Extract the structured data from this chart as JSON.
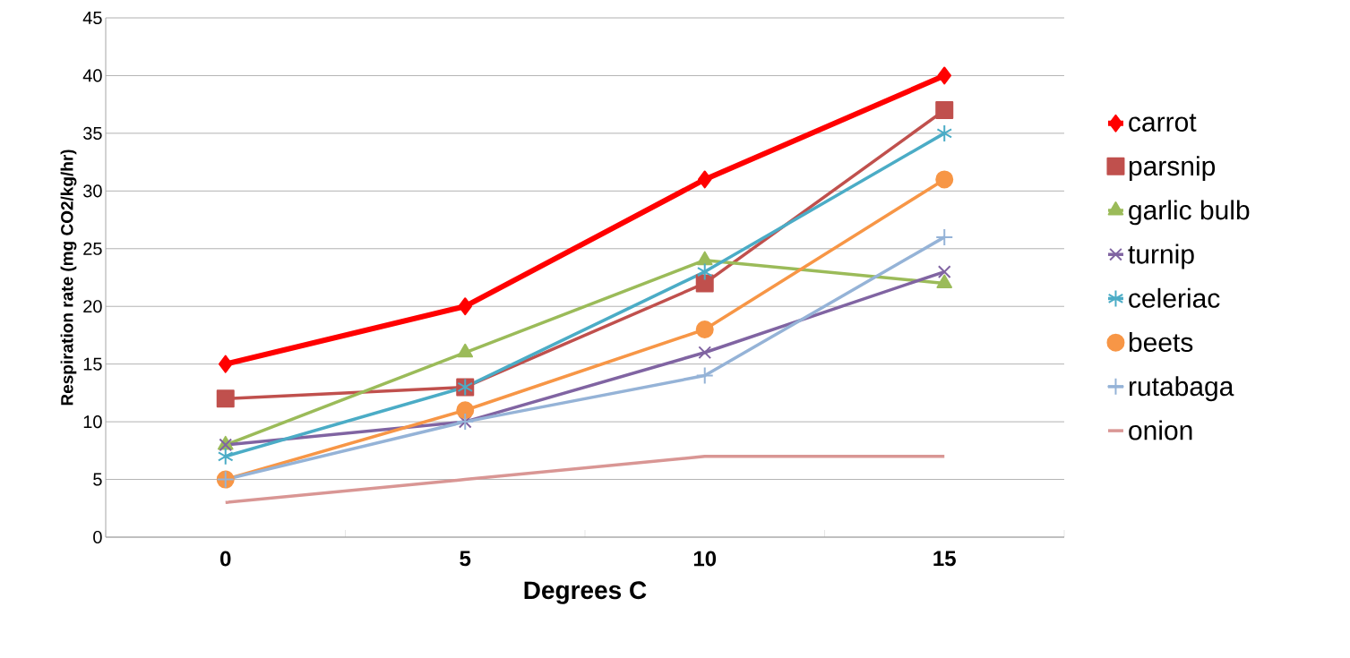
{
  "chart_data": {
    "type": "line",
    "xlabel": "Degrees C",
    "ylabel": "Respiration rate (mg CO2/kg/hr)",
    "categories": [
      "0",
      "5",
      "10",
      "15"
    ],
    "ylim": [
      0,
      45
    ],
    "yticks": [
      0,
      5,
      10,
      15,
      20,
      25,
      30,
      35,
      40,
      45
    ],
    "grid": "y",
    "legend": "right",
    "line_style": "solid",
    "series": [
      {
        "name": "carrot",
        "color": "#ff0000",
        "marker": "diamond",
        "values": [
          15,
          20,
          31,
          40
        ]
      },
      {
        "name": "parsnip",
        "color": "#c0504d",
        "marker": "square",
        "values": [
          12,
          13,
          22,
          37
        ]
      },
      {
        "name": "garlic bulb",
        "color": "#9bbb59",
        "marker": "triangle",
        "values": [
          8,
          16,
          24,
          22
        ]
      },
      {
        "name": "turnip",
        "color": "#8064a2",
        "marker": "cross",
        "values": [
          8,
          10,
          16,
          23
        ]
      },
      {
        "name": "celeriac",
        "color": "#4bacc6",
        "marker": "cross",
        "values": [
          7,
          13,
          23,
          35
        ]
      },
      {
        "name": "beets",
        "color": "#f79646",
        "marker": "circle",
        "values": [
          5,
          11,
          18,
          31
        ]
      },
      {
        "name": "rutabaga",
        "color": "#95b3d7",
        "marker": "plus",
        "values": [
          5,
          10,
          14,
          26
        ]
      },
      {
        "name": "onion",
        "color": "#d99694",
        "marker": "none",
        "values": [
          3,
          5,
          7,
          7
        ]
      }
    ]
  }
}
